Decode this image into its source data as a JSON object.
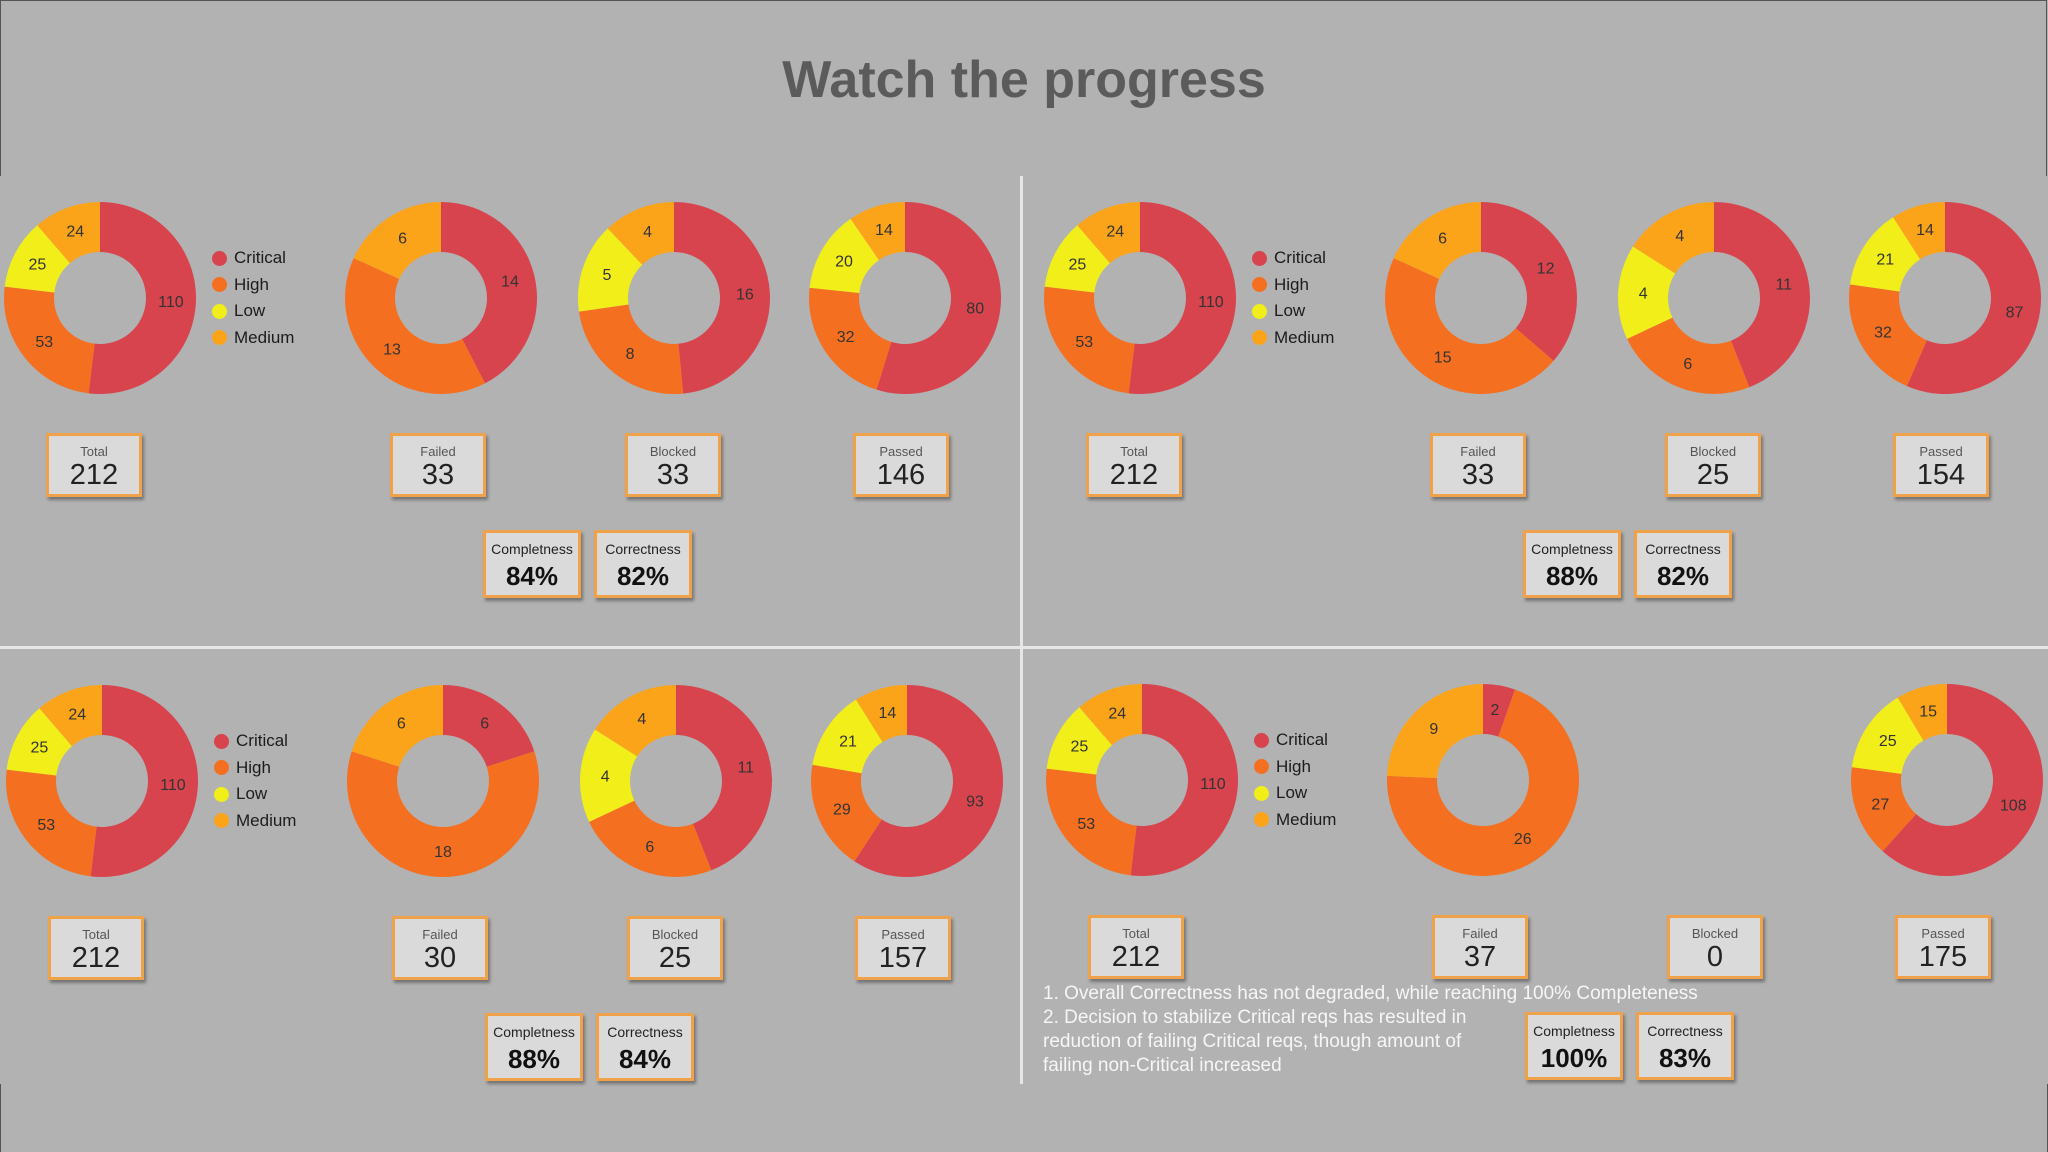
{
  "title": "Watch the progress",
  "colors": {
    "Critical": "#d7444e",
    "High": "#f47020",
    "Low": "#f2ee1a",
    "Medium": "#fba41a",
    "background": "#b2b2b2",
    "box_border": "#f0a24a"
  },
  "legend": {
    "items": [
      "Critical",
      "High",
      "Low",
      "Medium"
    ]
  },
  "chart_data": [
    {
      "type": "pie",
      "panel": "top-left",
      "donuts": [
        {
          "name": "Total",
          "values": {
            "Critical": 110,
            "High": 53,
            "Low": 25,
            "Medium": 24
          }
        },
        {
          "name": "Failed",
          "values": {
            "Critical": 14,
            "High": 13,
            "Low": 0,
            "Medium": 6
          }
        },
        {
          "name": "Blocked",
          "values": {
            "Critical": 16,
            "High": 8,
            "Low": 5,
            "Medium": 4
          }
        },
        {
          "name": "Passed",
          "values": {
            "Critical": 80,
            "High": 32,
            "Low": 20,
            "Medium": 14
          }
        }
      ],
      "stats": [
        {
          "label": "Total",
          "value": "212"
        },
        {
          "label": "Failed",
          "value": "33"
        },
        {
          "label": "Blocked",
          "value": "33"
        },
        {
          "label": "Passed",
          "value": "146"
        }
      ],
      "metrics": [
        {
          "label": "Completness",
          "value": "84%"
        },
        {
          "label": "Correctness",
          "value": "82%"
        }
      ]
    },
    {
      "type": "pie",
      "panel": "top-right",
      "donuts": [
        {
          "name": "Total",
          "values": {
            "Critical": 110,
            "High": 53,
            "Low": 25,
            "Medium": 24
          }
        },
        {
          "name": "Failed",
          "values": {
            "Critical": 12,
            "High": 15,
            "Low": 0,
            "Medium": 6
          }
        },
        {
          "name": "Blocked",
          "values": {
            "Critical": 11,
            "High": 6,
            "Low": 4,
            "Medium": 4
          }
        },
        {
          "name": "Passed",
          "values": {
            "Critical": 87,
            "High": 32,
            "Low": 21,
            "Medium": 14
          }
        }
      ],
      "stats": [
        {
          "label": "Total",
          "value": "212"
        },
        {
          "label": "Failed",
          "value": "33"
        },
        {
          "label": "Blocked",
          "value": "25"
        },
        {
          "label": "Passed",
          "value": "154"
        }
      ],
      "metrics": [
        {
          "label": "Completness",
          "value": "88%"
        },
        {
          "label": "Correctness",
          "value": "82%"
        }
      ]
    },
    {
      "type": "pie",
      "panel": "bottom-left",
      "donuts": [
        {
          "name": "Total",
          "values": {
            "Critical": 110,
            "High": 53,
            "Low": 25,
            "Medium": 24
          }
        },
        {
          "name": "Failed",
          "values": {
            "Critical": 6,
            "High": 18,
            "Low": 0,
            "Medium": 6
          }
        },
        {
          "name": "Blocked",
          "values": {
            "Critical": 11,
            "High": 6,
            "Low": 4,
            "Medium": 4
          }
        },
        {
          "name": "Passed",
          "values": {
            "Critical": 93,
            "High": 29,
            "Low": 21,
            "Medium": 14
          }
        }
      ],
      "stats": [
        {
          "label": "Total",
          "value": "212"
        },
        {
          "label": "Failed",
          "value": "30"
        },
        {
          "label": "Blocked",
          "value": "25"
        },
        {
          "label": "Passed",
          "value": "157"
        }
      ],
      "metrics": [
        {
          "label": "Completness",
          "value": "88%"
        },
        {
          "label": "Correctness",
          "value": "84%"
        }
      ]
    },
    {
      "type": "pie",
      "panel": "bottom-right",
      "donuts": [
        {
          "name": "Total",
          "values": {
            "Critical": 110,
            "High": 53,
            "Low": 25,
            "Medium": 24
          }
        },
        {
          "name": "Failed",
          "values": {
            "Critical": 2,
            "High": 26,
            "Low": 0,
            "Medium": 9
          }
        },
        {
          "name": "Blocked",
          "values": {
            "Critical": 0,
            "High": 0,
            "Low": 0,
            "Medium": 0
          }
        },
        {
          "name": "Passed",
          "values": {
            "Critical": 108,
            "High": 27,
            "Low": 25,
            "Medium": 15
          }
        }
      ],
      "stats": [
        {
          "label": "Total",
          "value": "212"
        },
        {
          "label": "Failed",
          "value": "37"
        },
        {
          "label": "Blocked",
          "value": "0"
        },
        {
          "label": "Passed",
          "value": "175"
        }
      ],
      "metrics": [
        {
          "label": "Completness",
          "value": "100%"
        },
        {
          "label": "Correctness",
          "value": "83%"
        }
      ]
    }
  ],
  "notes": [
    "1. Overall Correctness has not degraded, while reaching 100% Completeness",
    "2. Decision to stabilize Critical reqs has resulted in",
    "reduction of failing Critical reqs, though amount of",
    "failing non-Critical increased"
  ]
}
